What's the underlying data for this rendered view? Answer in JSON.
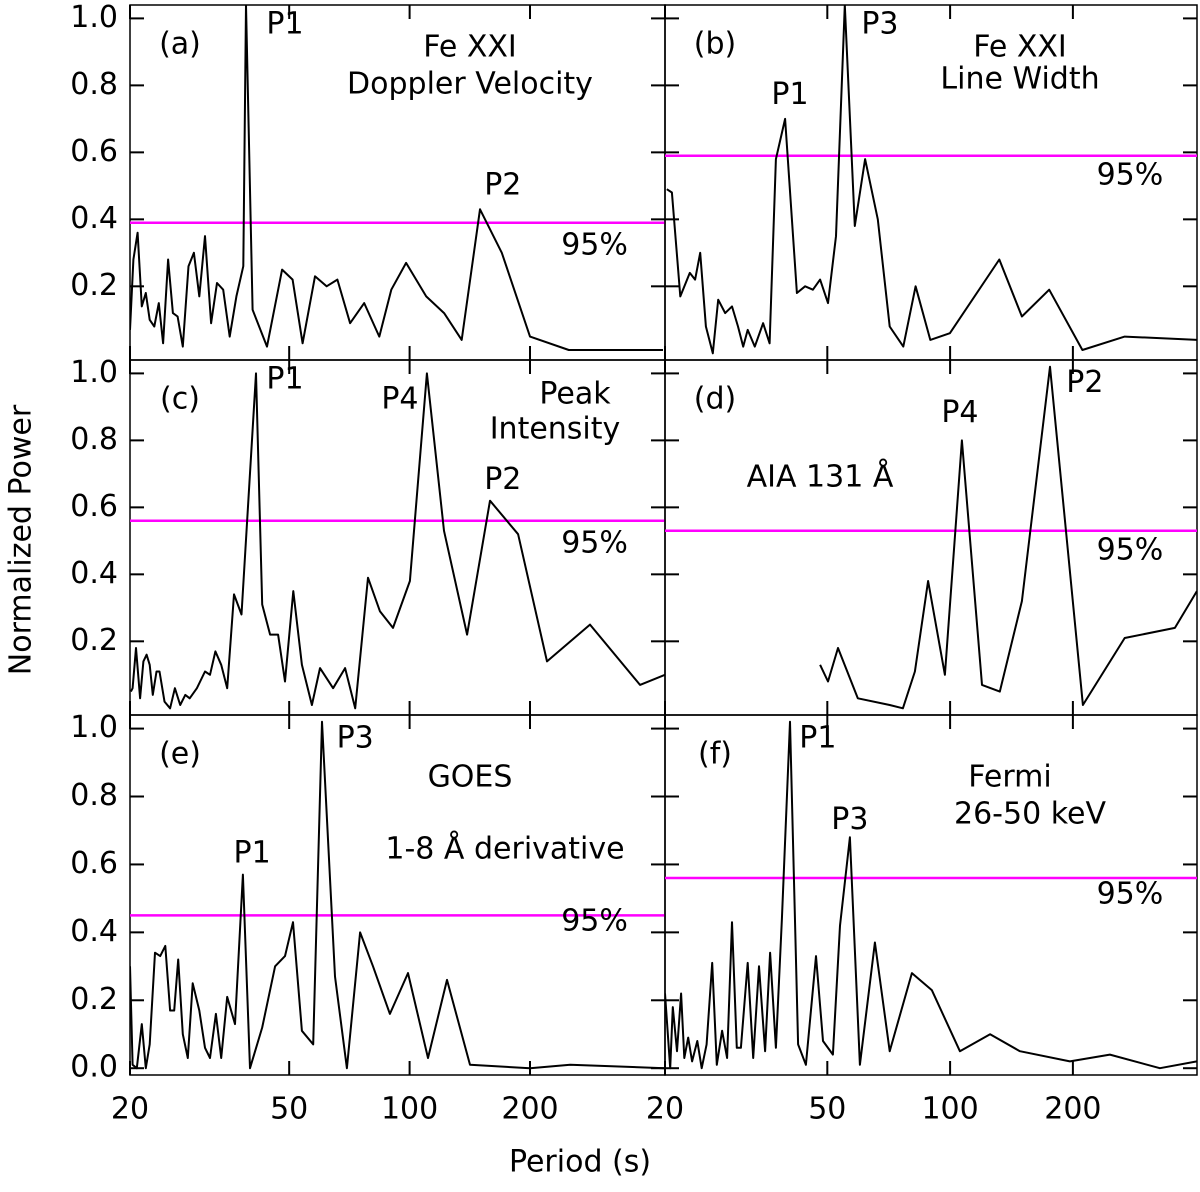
{
  "xlabel": "Period (s)",
  "ylabel": "Normalized Power",
  "chart_data": [
    {
      "type": "line",
      "panel_label": "(a)",
      "title": [
        "Fe XXI",
        "Doppler Velocity"
      ],
      "xscale": "log",
      "xlim": [
        20,
        435
      ],
      "ylim": [
        -0.02,
        1.04
      ],
      "xticks": [
        20,
        50,
        100,
        200
      ],
      "yticks": [
        0.2,
        0.4,
        0.6,
        0.8,
        {
          "value": 1,
          "label": "1.0"
        }
      ],
      "color": "#000000",
      "threshold": 0.39,
      "threshold_color": "#ff00ff",
      "x": [
        20,
        20.4,
        20.9,
        21.4,
        21.9,
        22.4,
        23,
        23.6,
        24.2,
        24.9,
        25.6,
        26.3,
        27.1,
        28,
        28.9,
        29.8,
        30.8,
        31.9,
        33,
        34.2,
        35.5,
        36.9,
        38.4,
        39,
        40.5,
        44,
        48,
        51,
        54,
        58,
        62,
        66,
        71,
        77,
        84,
        90,
        98,
        110,
        122,
        135,
        150,
        170,
        200,
        250,
        430
      ],
      "values": [
        0.07,
        0.28,
        0.36,
        0.14,
        0.18,
        0.1,
        0.08,
        0.15,
        0.03,
        0.28,
        0.12,
        0.11,
        0.02,
        0.26,
        0.3,
        0.17,
        0.35,
        0.09,
        0.21,
        0.19,
        0.05,
        0.17,
        0.26,
        1.04,
        0.13,
        0.02,
        0.25,
        0.22,
        0.03,
        0.23,
        0.2,
        0.22,
        0.09,
        0.15,
        0.05,
        0.19,
        0.27,
        0.17,
        0.12,
        0.04,
        0.43,
        0.3,
        0.05,
        0.01,
        0.01
      ],
      "annotations": [
        {
          "text": "P1",
          "x": 48.8,
          "y": 0.98,
          "color": "#22dd22"
        },
        {
          "text": "P2",
          "x": 171,
          "y": 0.5,
          "color": "#22dd22"
        },
        {
          "text": "95%",
          "x": 290,
          "y": 0.32,
          "color": "#ff00ff"
        }
      ]
    },
    {
      "type": "line",
      "panel_label": "(b)",
      "title": [
        "Fe XXI",
        "Line Width"
      ],
      "xscale": "log",
      "xlim": [
        20,
        403
      ],
      "ylim": [
        -0.02,
        1.04
      ],
      "xticks": [
        20,
        50,
        100,
        200
      ],
      "yticks": [
        0.2,
        0.4,
        0.6,
        0.8,
        {
          "value": 1,
          "label": "1.0"
        }
      ],
      "color": "#000000",
      "threshold": 0.59,
      "threshold_color": "#ff00ff",
      "x": [
        20.2,
        20.8,
        21.8,
        23.0,
        23.7,
        24.4,
        25.2,
        26.2,
        27.0,
        28.1,
        29.2,
        30.2,
        31.1,
        31.9,
        33.2,
        34.8,
        36.1,
        37.4,
        39.4,
        42.1,
        44.1,
        46.1,
        48.0,
        50.2,
        52.5,
        55.2,
        58.4,
        61.9,
        66.5,
        71.1,
        76.8,
        82.3,
        89.4,
        99.9,
        132,
        150,
        175,
        211,
        268,
        404
      ],
      "values": [
        0.49,
        0.48,
        0.17,
        0.24,
        0.22,
        0.3,
        0.08,
        0.0,
        0.16,
        0.12,
        0.14,
        0.08,
        0.02,
        0.07,
        0.02,
        0.09,
        0.03,
        0.58,
        0.7,
        0.18,
        0.2,
        0.19,
        0.22,
        0.15,
        0.35,
        1.04,
        0.38,
        0.58,
        0.4,
        0.08,
        0.02,
        0.2,
        0.04,
        0.06,
        0.28,
        0.11,
        0.19,
        0.01,
        0.05,
        0.04
      ],
      "annotations": [
        {
          "text": "P1",
          "x": 40.5,
          "y": 0.77,
          "color": "#22dd22"
        },
        {
          "text": "P3",
          "x": 67.3,
          "y": 0.98,
          "color": "#33dddd"
        },
        {
          "text": "95%",
          "x": 276,
          "y": 0.53,
          "color": "#ff00ff"
        }
      ]
    },
    {
      "type": "line",
      "panel_label": "(c)",
      "title": [
        "Peak",
        "Intensity"
      ],
      "xscale": "log",
      "xlim": [
        20,
        435
      ],
      "ylim": [
        -0.02,
        1.04
      ],
      "xticks": [
        20,
        50,
        100,
        200
      ],
      "yticks": [
        0.2,
        0.4,
        0.6,
        0.8,
        {
          "value": 1,
          "label": "1.0"
        }
      ],
      "color": "#000000",
      "threshold": 0.56,
      "threshold_color": "#ff00ff",
      "x": [
        20.1,
        20.3,
        20.7,
        21.2,
        21.6,
        22.0,
        22.4,
        22.8,
        23.3,
        23.7,
        24.4,
        25.2,
        25.9,
        26.7,
        27.5,
        28.2,
        29.4,
        30.8,
        31.7,
        32.7,
        33.8,
        35.0,
        36.4,
        38.0,
        41.3,
        42.8,
        44.8,
        46.9,
        48.8,
        51.2,
        53.8,
        57.0,
        59.7,
        64.4,
        69.0,
        73.1,
        78.7,
        84.3,
        90.9,
        100.2,
        110.5,
        121.9,
        139.2,
        158.9,
        186.7,
        220.6,
        282.5,
        376.8,
        435
      ],
      "values": [
        0.05,
        0.06,
        0.18,
        0.03,
        0.14,
        0.16,
        0.13,
        0.04,
        0.11,
        0.11,
        0.02,
        0.0,
        0.06,
        0.01,
        0.04,
        0.03,
        0.06,
        0.11,
        0.1,
        0.17,
        0.13,
        0.06,
        0.34,
        0.28,
        1.0,
        0.31,
        0.22,
        0.22,
        0.08,
        0.35,
        0.13,
        0.01,
        0.12,
        0.06,
        0.12,
        0.0,
        0.39,
        0.29,
        0.24,
        0.38,
        1.0,
        0.53,
        0.22,
        0.62,
        0.52,
        0.14,
        0.25,
        0.07,
        0.1
      ],
      "annotations": [
        {
          "text": "P1",
          "x": 48.8,
          "y": 0.98,
          "color": "#22dd22"
        },
        {
          "text": "P4",
          "x": 94.6,
          "y": 0.92,
          "color": "#33dddd"
        },
        {
          "text": "P2",
          "x": 171,
          "y": 0.68,
          "color": "#22dd22"
        },
        {
          "text": "95%",
          "x": 290,
          "y": 0.49,
          "color": "#ff00ff"
        }
      ]
    },
    {
      "type": "line",
      "panel_label": "(d)",
      "title": [
        "AIA  131  Å"
      ],
      "xscale": "log",
      "xlim": [
        20,
        403
      ],
      "ylim": [
        -0.02,
        1.04
      ],
      "xticks": [
        20,
        50,
        100,
        200
      ],
      "yticks": [
        0.2,
        0.4,
        0.6,
        0.8,
        {
          "value": 1,
          "label": "1.0"
        }
      ],
      "color": "#000000",
      "threshold": 0.53,
      "threshold_color": "#ff00ff",
      "x": [
        48.0,
        50.2,
        53.1,
        59.4,
        71.1,
        76.6,
        82.0,
        88.3,
        97.1,
        106.9,
        119.7,
        132.4,
        150.0,
        175.8,
        211.6,
        268.0,
        355.7,
        402.7
      ],
      "values": [
        0.13,
        0.08,
        0.18,
        0.03,
        0.01,
        0.0,
        0.11,
        0.38,
        0.1,
        0.8,
        0.07,
        0.05,
        0.32,
        1.02,
        0.01,
        0.21,
        0.24,
        0.35
      ],
      "annotations": [
        {
          "text": "P4",
          "x": 105.7,
          "y": 0.88,
          "color": "#33dddd"
        },
        {
          "text": "P2",
          "x": 214,
          "y": 0.97,
          "color": "#22dd22"
        },
        {
          "text": "95%",
          "x": 276,
          "y": 0.47,
          "color": "#ff00ff"
        }
      ]
    },
    {
      "type": "line",
      "panel_label": "(e)",
      "title": [
        "GOES",
        "1-8 Å derivative"
      ],
      "xscale": "log",
      "xlim": [
        20,
        435
      ],
      "ylim": [
        -0.02,
        1.04
      ],
      "xticks": [
        20,
        50,
        100,
        200
      ],
      "yticks": [
        {
          "value": 0,
          "label": "0.0"
        },
        0.2,
        0.4,
        0.6,
        0.8,
        {
          "value": 1,
          "label": "1.0"
        }
      ],
      "color": "#000000",
      "threshold": 0.45,
      "threshold_color": "#ff00ff",
      "x": [
        20.0,
        20.3,
        20.8,
        21.4,
        21.9,
        22.4,
        23.1,
        23.8,
        24.5,
        25.2,
        25.8,
        26.4,
        27.1,
        27.9,
        28.7,
        29.8,
        30.8,
        31.7,
        32.8,
        33.8,
        35.0,
        36.6,
        38.3,
        39.9,
        42.8,
        46.1,
        48.8,
        51.1,
        53.8,
        57.4,
        60.4,
        65.1,
        69.7,
        75.2,
        81.0,
        89.3,
        99.1,
        111.2,
        124,
        141.6,
        200,
        252,
        435
      ],
      "values": [
        0.3,
        0.01,
        0.0,
        0.13,
        0.0,
        0.07,
        0.34,
        0.33,
        0.36,
        0.17,
        0.17,
        0.32,
        0.1,
        0.03,
        0.25,
        0.17,
        0.06,
        0.03,
        0.16,
        0.03,
        0.21,
        0.13,
        0.57,
        0.0,
        0.12,
        0.3,
        0.33,
        0.43,
        0.11,
        0.07,
        1.02,
        0.27,
        0.0,
        0.4,
        0.3,
        0.16,
        0.28,
        0.03,
        0.26,
        0.01,
        0.0,
        0.01,
        0.0
      ],
      "annotations": [
        {
          "text": "P1",
          "x": 40.4,
          "y": 0.63,
          "color": "#22dd22"
        },
        {
          "text": "P3",
          "x": 73.1,
          "y": 0.97,
          "color": "#33dddd"
        },
        {
          "text": "95%",
          "x": 290,
          "y": 0.43,
          "color": "#ff00ff"
        }
      ]
    },
    {
      "type": "line",
      "panel_label": "(f)",
      "title": [
        "Fermi",
        "26-50 keV"
      ],
      "xscale": "log",
      "xlim": [
        20,
        403
      ],
      "ylim": [
        -0.02,
        1.04
      ],
      "xticks": [
        20,
        50,
        100,
        200
      ],
      "yticks": [
        {
          "value": 0,
          "label": "0.0"
        },
        0.2,
        0.4,
        0.6,
        0.8,
        {
          "value": 1,
          "label": "1.0"
        }
      ],
      "color": "#000000",
      "threshold": 0.56,
      "threshold_color": "#ff00ff",
      "x": [
        20.0,
        20.6,
        20.9,
        21.4,
        21.9,
        22.3,
        22.8,
        23.3,
        24.0,
        24.6,
        25.3,
        26.1,
        26.8,
        27.6,
        28.4,
        29.2,
        30.0,
        30.7,
        31.9,
        32.9,
        34.0,
        35.2,
        36.2,
        37.4,
        38.7,
        40.5,
        42.4,
        44.3,
        46.9,
        48.8,
        51.6,
        53.7,
        56.8,
        60.1,
        65.4,
        71.1,
        80.6,
        90.2,
        105.7,
        125.3,
        148.3,
        196.6,
        246.5,
        326.8,
        402.7
      ],
      "values": [
        0.22,
        0.0,
        0.18,
        0.05,
        0.22,
        0.03,
        0.09,
        0.02,
        0.08,
        0.0,
        0.07,
        0.31,
        0.01,
        0.11,
        0.03,
        0.43,
        0.06,
        0.06,
        0.31,
        0.03,
        0.3,
        0.05,
        0.34,
        0.06,
        0.44,
        1.02,
        0.07,
        0.01,
        0.33,
        0.08,
        0.04,
        0.42,
        0.68,
        0.01,
        0.37,
        0.05,
        0.28,
        0.23,
        0.05,
        0.1,
        0.05,
        0.02,
        0.04,
        0.0,
        0.02
      ],
      "annotations": [
        {
          "text": "P1",
          "x": 47.4,
          "y": 0.97,
          "color": "#22dd22"
        },
        {
          "text": "P3",
          "x": 56.8,
          "y": 0.73,
          "color": "#33dddd"
        },
        {
          "text": "95%",
          "x": 276,
          "y": 0.51,
          "color": "#ff00ff"
        }
      ]
    }
  ]
}
